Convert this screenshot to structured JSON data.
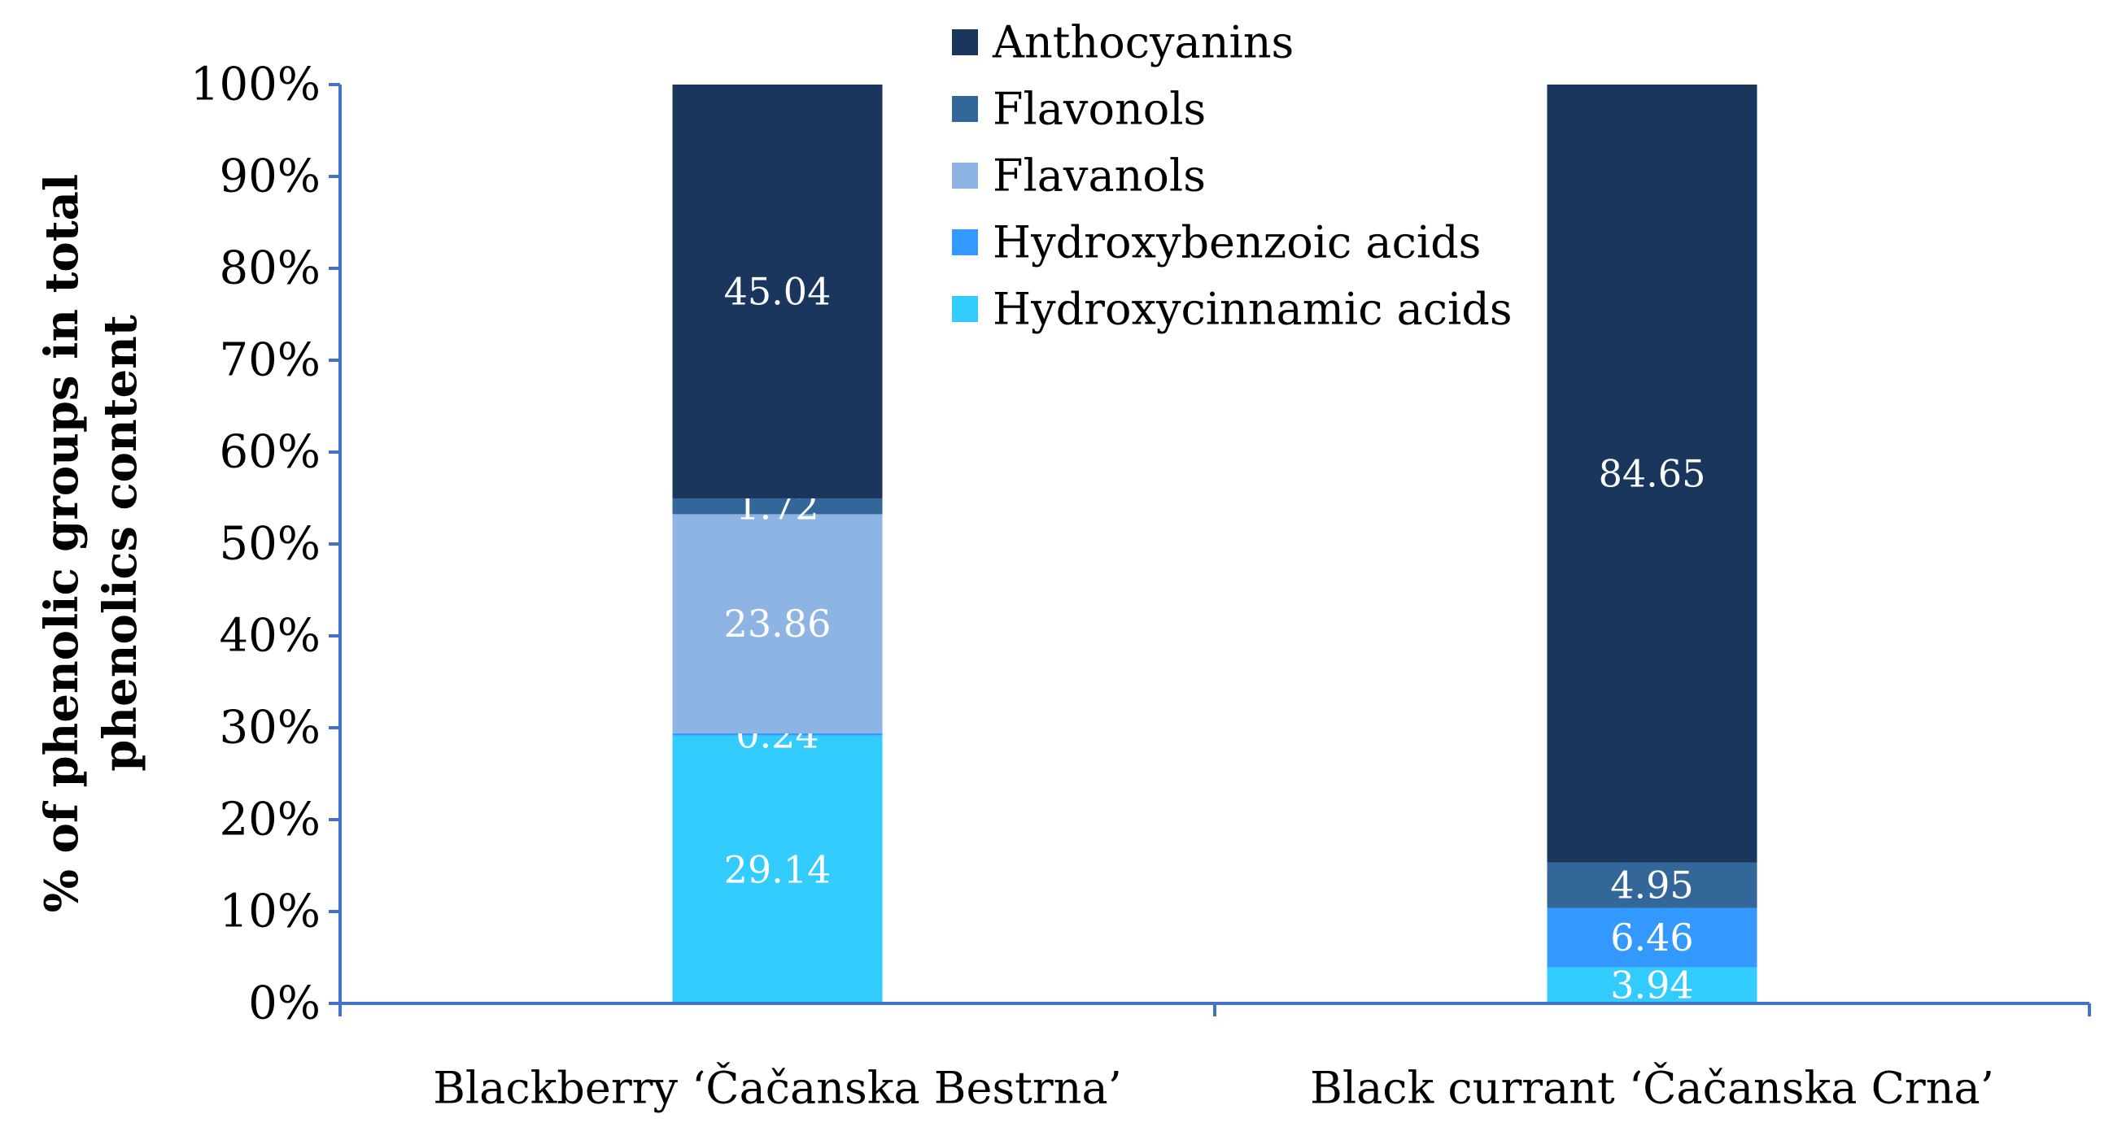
{
  "chart_data": {
    "type": "bar",
    "stacked": true,
    "normalized": true,
    "title": "",
    "xlabel": "",
    "ylabel": "% of phenolic groups in total phenolics content",
    "ylabel_lines": [
      "% of phenolic groups in total",
      "phenolics content"
    ],
    "ylim": [
      0,
      100
    ],
    "yticks": [
      0,
      10,
      20,
      30,
      40,
      50,
      60,
      70,
      80,
      90,
      100
    ],
    "ytick_labels": [
      "0%",
      "10%",
      "20%",
      "30%",
      "40%",
      "50%",
      "60%",
      "70%",
      "80%",
      "90%",
      "100%"
    ],
    "categories": [
      "Blackberry ‘Čačanska Bestrna’",
      "Black currant ‘Čačanska Crna’"
    ],
    "legend_position": "top-center",
    "series": [
      {
        "name": "Hydroxycinnamic acids",
        "color": "#33ccff",
        "values": [
          29.14,
          3.94
        ],
        "labels": [
          "29.14",
          "3.94"
        ]
      },
      {
        "name": "Hydroxybenzoic acids",
        "color": "#3399ff",
        "values": [
          0.24,
          6.46
        ],
        "labels": [
          "0.24",
          "6.46"
        ]
      },
      {
        "name": "Flavanols",
        "color": "#8eb4e3",
        "values": [
          23.86,
          0
        ],
        "labels": [
          "23.86",
          ""
        ]
      },
      {
        "name": "Flavonols",
        "color": "#336699",
        "values": [
          1.72,
          4.95
        ],
        "labels": [
          "1.72",
          "4.95"
        ]
      },
      {
        "name": "Anthocyanins",
        "color": "#1a365d",
        "values": [
          45.04,
          84.65
        ],
        "labels": [
          "45.04",
          "84.65"
        ]
      }
    ],
    "legend_order": [
      "Anthocyanins",
      "Flavonols",
      "Flavanols",
      "Hydroxybenzoic acids",
      "Hydroxycinnamic acids"
    ]
  }
}
